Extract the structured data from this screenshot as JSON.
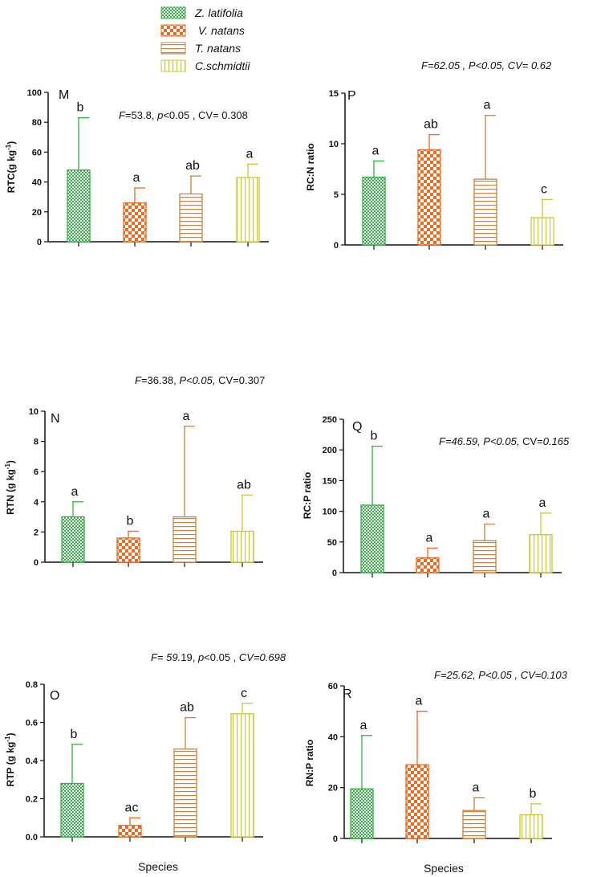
{
  "legend": {
    "entries": [
      {
        "label": "Z. latifolia",
        "pattern": "pat-z"
      },
      {
        "label": " V. natans",
        "pattern": "pat-v"
      },
      {
        "label": "T. natans",
        "pattern": "pat-t"
      },
      {
        "label": "C.schmidtii",
        "pattern": "pat-c"
      }
    ]
  },
  "colors": {
    "green": "#33b044",
    "orange": "#ee6a1f",
    "brown": "#c8843c",
    "yellow": "#c9c834",
    "axis": "#111111"
  },
  "chart_data": [
    {
      "id": "M",
      "type": "bar",
      "panel_letter": "M",
      "ylabel": "RTC(g kg",
      "ylabel_sup": "-1",
      "ylabel_end": ")",
      "ylim": [
        0,
        100
      ],
      "yticks": [
        "0",
        "20",
        "40",
        "60",
        "80",
        "100"
      ],
      "stats": [
        [
          "F",
          "i"
        ],
        [
          "=53.8,  ",
          ""
        ],
        [
          "p",
          "i"
        ],
        [
          "<0.05 , CV= 0.308",
          ""
        ]
      ],
      "categories": [
        "Z. latifolia",
        "V. natans",
        "T. natans",
        "C.schmidtii"
      ],
      "values": [
        48,
        26,
        32,
        43
      ],
      "errors": [
        35,
        10,
        12,
        9
      ],
      "letters": [
        "b",
        "a",
        "ab",
        "a"
      ],
      "xlabel": ""
    },
    {
      "id": "P",
      "type": "bar",
      "panel_letter": "P",
      "ylabel": "RC:N ratio",
      "ylabel_sup": "",
      "ylabel_end": "",
      "ylim": [
        0,
        15
      ],
      "yticks": [
        "0",
        "5",
        "10",
        "15"
      ],
      "stats": [
        [
          "F=62.05 , P<0.05,     CV= 0.62",
          "i"
        ]
      ],
      "categories": [
        "Z. latifolia",
        "V. natans",
        "T. natans",
        "C.schmidtii"
      ],
      "values": [
        6.7,
        9.4,
        6.5,
        2.7
      ],
      "errors": [
        1.6,
        1.5,
        6.3,
        1.8
      ],
      "letters": [
        "a",
        "ab",
        "a",
        "c"
      ],
      "xlabel": ""
    },
    {
      "id": "N",
      "type": "bar",
      "panel_letter": "N",
      "ylabel": "RTN (g kg",
      "ylabel_sup": "-1",
      "ylabel_end": ")",
      "ylim": [
        0,
        10
      ],
      "yticks": [
        "0",
        "2",
        "4",
        "6",
        "8",
        "10"
      ],
      "stats": [
        [
          "F",
          "i"
        ],
        [
          "=36.38, ",
          ""
        ],
        [
          "P<0.05,",
          "i"
        ],
        [
          "  CV=0.307",
          ""
        ]
      ],
      "categories": [
        "Z. latifolia",
        "V. natans",
        "T. natans",
        "C.schmidtii"
      ],
      "values": [
        3.0,
        1.6,
        3.0,
        2.05
      ],
      "errors": [
        1.0,
        0.45,
        6.0,
        2.4
      ],
      "letters": [
        "a",
        "b",
        "a",
        "ab"
      ],
      "xlabel": ""
    },
    {
      "id": "Q",
      "type": "bar",
      "panel_letter": "Q",
      "ylabel": "RC:P ratio",
      "ylabel_sup": "",
      "ylabel_end": "",
      "ylim": [
        0,
        250
      ],
      "yticks": [
        "0",
        "50",
        "100",
        "150",
        "200",
        "250"
      ],
      "stats": [
        [
          "F=46.59,   P<0.05,",
          "i"
        ],
        [
          "      CV=",
          ""
        ],
        [
          "0.165",
          "i"
        ]
      ],
      "categories": [
        "Z. latifolia",
        "V. natans",
        "T. natans",
        "C.schmidtii"
      ],
      "values": [
        110,
        24,
        52,
        62
      ],
      "errors": [
        96,
        16,
        27,
        35
      ],
      "letters": [
        "b",
        "a",
        "a",
        "a"
      ],
      "xlabel": ""
    },
    {
      "id": "O",
      "type": "bar",
      "panel_letter": "O",
      "ylabel": "RTP (g kg",
      "ylabel_sup": "-1",
      "ylabel_end": ")",
      "ylim": [
        0,
        0.8
      ],
      "yticks": [
        "0.0",
        "0.2",
        "0.4",
        "0.6",
        "0.8"
      ],
      "stats": [
        [
          "F",
          "i"
        ],
        [
          "= ",
          ""
        ],
        [
          "59.",
          "i"
        ],
        [
          "19, ",
          ""
        ],
        [
          "p",
          "i"
        ],
        [
          "<0.05 ,  ",
          ""
        ],
        [
          "CV=0.698",
          "i"
        ]
      ],
      "categories": [
        "Z. latifolia",
        "V. natans",
        "T. natans",
        "C.schmidtii"
      ],
      "values": [
        0.28,
        0.06,
        0.46,
        0.645
      ],
      "errors": [
        0.205,
        0.04,
        0.165,
        0.055
      ],
      "letters": [
        "b",
        "ac",
        "ab",
        "c"
      ],
      "xlabel": "Species"
    },
    {
      "id": "R",
      "type": "bar",
      "panel_letter": "R",
      "ylabel": "RN:P ratio",
      "ylabel_sup": "",
      "ylabel_end": "",
      "ylim": [
        0,
        60
      ],
      "yticks": [
        "0",
        "20",
        "40",
        "60"
      ],
      "stats": [
        [
          "F=25.62,   P<0.05 ,  CV=0.103",
          "i"
        ]
      ],
      "categories": [
        "Z. latifolia",
        "V. natans",
        "T. natans",
        "C.schmidtii"
      ],
      "values": [
        19.5,
        29,
        11,
        9.3
      ],
      "errors": [
        21,
        21,
        5,
        4.3
      ],
      "letters": [
        "a",
        "a",
        "a",
        "b"
      ],
      "xlabel": "Species"
    }
  ]
}
